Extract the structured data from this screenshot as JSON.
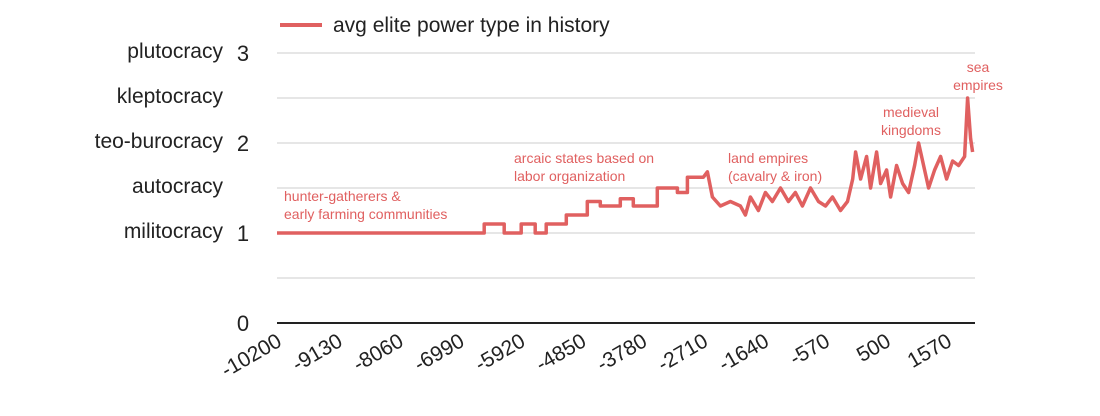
{
  "chart_data": {
    "type": "line",
    "x": [
      -10200,
      -6561,
      -6561,
      -6209,
      -6209,
      -5910,
      -5910,
      -5664,
      -5664,
      -5471,
      -5471,
      -5119,
      -5119,
      -4750,
      -4750,
      -4522,
      -4522,
      -4170,
      -4170,
      -3941,
      -3941,
      -3520,
      -3520,
      -3168,
      -3168,
      -2992,
      -2992,
      -2711,
      -2641,
      -2553,
      -2412,
      -2236,
      -2061,
      -1973,
      -1885,
      -1744,
      -1621,
      -1498,
      -1357,
      -1217,
      -1094,
      -971,
      -830,
      -689,
      -566,
      -443,
      -302,
      -179,
      -89,
      -37,
      50,
      156,
      226,
      331,
      402,
      507,
      577,
      683,
      788,
      894,
      999,
      1069,
      1139,
      1245,
      1350,
      1455,
      1561,
      1666,
      1772,
      1877,
      1930,
      1983,
      2018
    ],
    "series": [
      {
        "name": "avg elite power type in history",
        "color": "#e06060",
        "values": [
          1,
          1,
          1.1,
          1.1,
          1,
          1,
          1.1,
          1.1,
          1,
          1,
          1.1,
          1.1,
          1.2,
          1.2,
          1.35,
          1.35,
          1.3,
          1.3,
          1.38,
          1.38,
          1.3,
          1.3,
          1.5,
          1.5,
          1.45,
          1.45,
          1.62,
          1.62,
          1.68,
          1.4,
          1.3,
          1.35,
          1.3,
          1.2,
          1.4,
          1.25,
          1.45,
          1.35,
          1.5,
          1.35,
          1.45,
          1.3,
          1.5,
          1.35,
          1.3,
          1.4,
          1.25,
          1.35,
          1.6,
          1.9,
          1.6,
          1.85,
          1.5,
          1.9,
          1.55,
          1.7,
          1.4,
          1.75,
          1.55,
          1.45,
          1.75,
          2.0,
          1.8,
          1.5,
          1.7,
          1.85,
          1.6,
          1.8,
          1.75,
          1.85,
          2.5,
          2.05,
          1.9
        ]
      }
    ],
    "xlim": [
      -10200,
      2060
    ],
    "xticks": [
      -10200,
      -9130,
      -8060,
      -6990,
      -5920,
      -4850,
      -3780,
      -2710,
      -1640,
      -570,
      500,
      1570
    ],
    "ylim": [
      0,
      3
    ],
    "yticks": [
      0,
      1,
      2,
      3
    ],
    "minor_yticks": [
      0.5,
      1.5,
      2.5
    ],
    "regime_labels": [
      {
        "value": 3,
        "label": "plutocracy"
      },
      {
        "value": 2.5,
        "label": "kleptocracy"
      },
      {
        "value": 2,
        "label": "teo-burocracy"
      },
      {
        "value": 1.5,
        "label": "autocracy"
      },
      {
        "value": 1,
        "label": "militocracy"
      }
    ],
    "annotations": [
      [
        "hunter-gatherers &",
        "early farming communities"
      ],
      [
        "arcaic states based on",
        "labor organization"
      ],
      [
        "land empires",
        "(cavalry & iron)"
      ],
      [
        "medieval",
        "kingdoms"
      ],
      [
        "sea",
        "empires"
      ]
    ],
    "grid": true
  }
}
